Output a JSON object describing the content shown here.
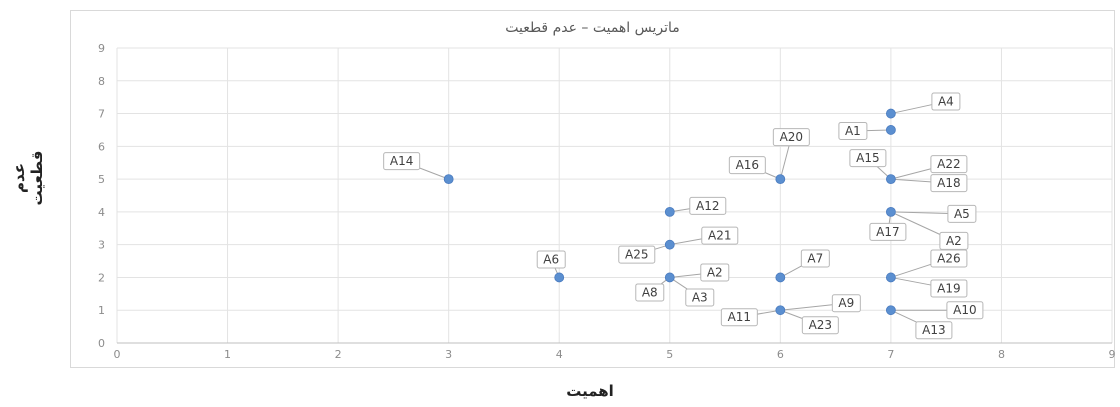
{
  "chart_data": {
    "type": "scatter",
    "title": "ماتریس اهمیت – عدم قطعیت",
    "xlabel": "اهمیت",
    "ylabel": "عدم قطعیت",
    "xlim": [
      0,
      9
    ],
    "ylim": [
      0,
      9
    ],
    "x_ticks": [
      "0",
      "1",
      "2",
      "3",
      "4",
      "5",
      "6",
      "7",
      "8",
      "9"
    ],
    "y_ticks": [
      "0",
      "1",
      "2",
      "3",
      "4",
      "5",
      "6",
      "7",
      "8",
      "9"
    ],
    "grid": true,
    "marker_color": "#5b8fd0",
    "points": [
      {
        "x": 3,
        "y": 5
      },
      {
        "x": 4,
        "y": 2
      },
      {
        "x": 5,
        "y": 4
      },
      {
        "x": 5,
        "y": 3
      },
      {
        "x": 5,
        "y": 2
      },
      {
        "x": 6,
        "y": 5
      },
      {
        "x": 6,
        "y": 2
      },
      {
        "x": 6,
        "y": 1
      },
      {
        "x": 7,
        "y": 7
      },
      {
        "x": 7,
        "y": 6.5
      },
      {
        "x": 7,
        "y": 5
      },
      {
        "x": 7,
        "y": 4
      },
      {
        "x": 7,
        "y": 2
      },
      {
        "x": 7,
        "y": 1
      }
    ],
    "labels": [
      {
        "text": "A14",
        "x": 3,
        "y": 5,
        "dx": -47,
        "dy": -18
      },
      {
        "text": "A6",
        "x": 4,
        "y": 2,
        "dx": -8,
        "dy": -18
      },
      {
        "text": "A12",
        "x": 5,
        "y": 4,
        "dx": 38,
        "dy": -6
      },
      {
        "text": "A21",
        "x": 5,
        "y": 3,
        "dx": 50,
        "dy": -9
      },
      {
        "text": "A25",
        "x": 5,
        "y": 3,
        "dx": -33,
        "dy": 10
      },
      {
        "text": "A2",
        "x": 5,
        "y": 2,
        "dx": 45,
        "dy": -5
      },
      {
        "text": "A8",
        "x": 5,
        "y": 2,
        "dx": -20,
        "dy": 15
      },
      {
        "text": "A3",
        "x": 5,
        "y": 2,
        "dx": 30,
        "dy": 20
      },
      {
        "text": "A20",
        "x": 6,
        "y": 5,
        "dx": 11,
        "dy": -42
      },
      {
        "text": "A16",
        "x": 6,
        "y": 5,
        "dx": -33,
        "dy": -14
      },
      {
        "text": "A7",
        "x": 6,
        "y": 2,
        "dx": 35,
        "dy": -19
      },
      {
        "text": "A9",
        "x": 6,
        "y": 1,
        "dx": 66,
        "dy": -7
      },
      {
        "text": "A11",
        "x": 6,
        "y": 1,
        "dx": -41,
        "dy": 7
      },
      {
        "text": "A23",
        "x": 6,
        "y": 1,
        "dx": 40,
        "dy": 15
      },
      {
        "text": "A4",
        "x": 7,
        "y": 7,
        "dx": 55,
        "dy": -12
      },
      {
        "text": "A1",
        "x": 7,
        "y": 6.5,
        "dx": -38,
        "dy": 1
      },
      {
        "text": "A15",
        "x": 7,
        "y": 5,
        "dx": -23,
        "dy": -21
      },
      {
        "text": "A22",
        "x": 7,
        "y": 5,
        "dx": 58,
        "dy": -15
      },
      {
        "text": "A18",
        "x": 7,
        "y": 5,
        "dx": 58,
        "dy": 4
      },
      {
        "text": "A5",
        "x": 7,
        "y": 4,
        "dx": 71,
        "dy": 2
      },
      {
        "text": "A17",
        "x": 7,
        "y": 4,
        "dx": -3,
        "dy": 20
      },
      {
        "text": "A2",
        "x": 7,
        "y": 4,
        "dx": 63,
        "dy": 29
      },
      {
        "text": "A26",
        "x": 7,
        "y": 2,
        "dx": 58,
        "dy": -19
      },
      {
        "text": "A19",
        "x": 7,
        "y": 2,
        "dx": 58,
        "dy": 11
      },
      {
        "text": "A10",
        "x": 7,
        "y": 1,
        "dx": 74,
        "dy": 0
      },
      {
        "text": "A13",
        "x": 7,
        "y": 1,
        "dx": 43,
        "dy": 20
      }
    ]
  }
}
